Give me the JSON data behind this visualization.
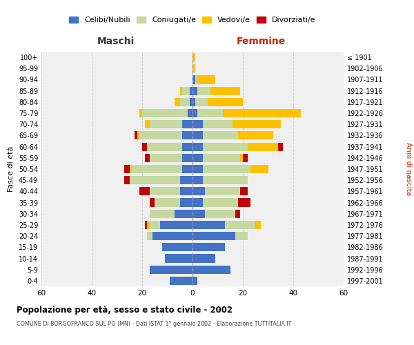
{
  "age_groups": [
    "0-4",
    "5-9",
    "10-14",
    "15-19",
    "20-24",
    "25-29",
    "30-34",
    "35-39",
    "40-44",
    "45-49",
    "50-54",
    "55-59",
    "60-64",
    "65-69",
    "70-74",
    "75-79",
    "80-84",
    "85-89",
    "90-94",
    "95-99",
    "100+"
  ],
  "birth_years": [
    "1997-2001",
    "1992-1996",
    "1987-1991",
    "1982-1986",
    "1977-1981",
    "1972-1976",
    "1967-1971",
    "1962-1966",
    "1957-1961",
    "1952-1956",
    "1947-1951",
    "1942-1946",
    "1937-1941",
    "1932-1936",
    "1927-1931",
    "1922-1926",
    "1917-1921",
    "1912-1916",
    "1907-1911",
    "1902-1906",
    "≤ 1901"
  ],
  "maschi_celibi": [
    9,
    17,
    11,
    12,
    16,
    13,
    7,
    5,
    5,
    5,
    4,
    4,
    4,
    4,
    4,
    2,
    1,
    1,
    0,
    0,
    0
  ],
  "maschi_coniugati": [
    0,
    0,
    0,
    0,
    2,
    4,
    10,
    10,
    12,
    20,
    20,
    13,
    14,
    17,
    13,
    18,
    4,
    3,
    0,
    0,
    0
  ],
  "maschi_vedovi": [
    0,
    0,
    0,
    0,
    0,
    1,
    0,
    0,
    0,
    0,
    1,
    0,
    0,
    1,
    2,
    1,
    2,
    1,
    0,
    0,
    0
  ],
  "maschi_divorziati": [
    0,
    0,
    0,
    0,
    0,
    1,
    0,
    2,
    4,
    2,
    2,
    2,
    2,
    1,
    0,
    0,
    0,
    0,
    0,
    0,
    0
  ],
  "femmine_celibi": [
    2,
    15,
    9,
    13,
    17,
    13,
    5,
    4,
    5,
    4,
    4,
    4,
    4,
    4,
    4,
    2,
    1,
    2,
    1,
    0,
    0
  ],
  "femmine_coniugati": [
    0,
    0,
    0,
    0,
    5,
    12,
    12,
    14,
    14,
    18,
    19,
    15,
    18,
    14,
    12,
    10,
    5,
    5,
    1,
    0,
    0
  ],
  "femmine_vedovi": [
    0,
    0,
    0,
    0,
    0,
    2,
    0,
    0,
    0,
    0,
    7,
    1,
    12,
    14,
    19,
    31,
    14,
    12,
    7,
    1,
    1
  ],
  "femmine_divorziati": [
    0,
    0,
    0,
    0,
    0,
    0,
    2,
    5,
    3,
    0,
    0,
    2,
    2,
    0,
    0,
    0,
    0,
    0,
    0,
    0,
    0
  ],
  "color_celibi": "#4472c4",
  "color_coniugati": "#c5d9a0",
  "color_vedovi": "#ffc000",
  "color_divorziati": "#c0000c",
  "title": "Popolazione per età, sesso e stato civile - 2002",
  "subtitle": "COMUNE DI BORGOFRANCO SUL PO (MN) - Dati ISTAT 1° gennaio 2002 - Elaborazione TUTTITALIA.IT",
  "xlabel_left": "Maschi",
  "xlabel_right": "Femmine",
  "ylabel_left": "Fasce di età",
  "ylabel_right": "Anni di nascita",
  "xlim": 60,
  "background_color": "#ffffff",
  "legend_labels": [
    "Celibi/Nubili",
    "Coniugati/e",
    "Vedovi/e",
    "Divorziati/e"
  ]
}
